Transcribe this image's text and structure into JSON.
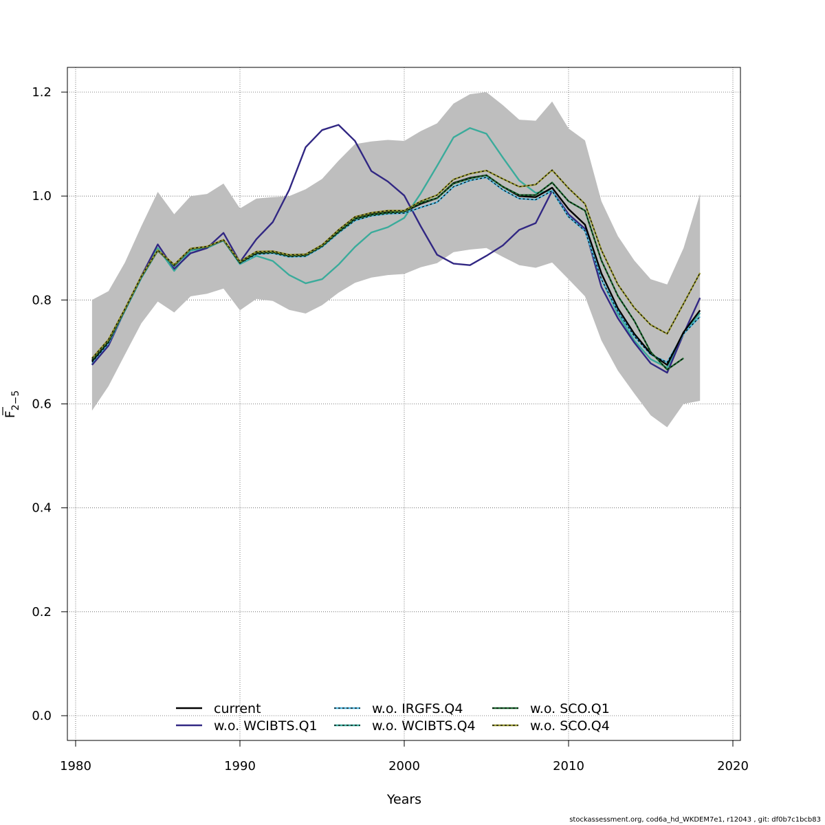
{
  "footer": "stockassessment.org, cod6a_hd_WKDEM7e1, r12043 , git: df0b7c1bcb83",
  "chart_data": {
    "type": "line",
    "xlabel": "Years",
    "ylabel_main": "F",
    "ylabel_sub": "2−5",
    "xlim": [
      1980,
      2020
    ],
    "ylim": [
      0.0,
      1.2
    ],
    "x_ticks": [
      1980,
      1990,
      2000,
      2010,
      2020
    ],
    "y_ticks": [
      "0.0",
      "0.2",
      "0.4",
      "0.6",
      "0.8",
      "1.0",
      "1.2"
    ],
    "grid": true,
    "legend_position": "bottom-center",
    "colors": {
      "band": "#bebebe",
      "current": "#000000",
      "w.o. WCIBTS.Q1": "#312783",
      "w.o. IRGFS.Q4": "#50b8e0",
      "w.o. WCIBTS.Q4": "#3aab9b",
      "w.o. SCO.Q1": "#1e6a32",
      "w.o. SCO.Q4": "#999933"
    },
    "confidence_band": {
      "x": [
        1981,
        1982,
        1983,
        1984,
        1985,
        1986,
        1987,
        1988,
        1989,
        1990,
        1991,
        1992,
        1993,
        1994,
        1995,
        1996,
        1997,
        1998,
        1999,
        2000,
        2001,
        2002,
        2003,
        2004,
        2005,
        2006,
        2007,
        2008,
        2009,
        2010,
        2011,
        2012,
        2013,
        2014,
        2015,
        2016,
        2017,
        2018
      ],
      "upper": [
        0.8,
        0.817,
        0.872,
        0.942,
        1.008,
        0.965,
        1.0,
        1.004,
        1.024,
        0.976,
        0.995,
        0.998,
        1.0,
        1.013,
        1.033,
        1.068,
        1.1,
        1.105,
        1.108,
        1.106,
        1.125,
        1.14,
        1.178,
        1.196,
        1.2,
        1.175,
        1.147,
        1.145,
        1.182,
        1.13,
        1.107,
        0.99,
        0.923,
        0.876,
        0.84,
        0.83,
        0.9,
        1.004
      ],
      "lower": [
        0.587,
        0.634,
        0.695,
        0.755,
        0.797,
        0.776,
        0.807,
        0.812,
        0.822,
        0.78,
        0.802,
        0.798,
        0.781,
        0.774,
        0.79,
        0.814,
        0.833,
        0.843,
        0.848,
        0.85,
        0.863,
        0.871,
        0.892,
        0.897,
        0.9,
        0.883,
        0.867,
        0.862,
        0.872,
        0.84,
        0.807,
        0.722,
        0.664,
        0.62,
        0.578,
        0.555,
        0.6,
        0.606
      ]
    },
    "series": [
      {
        "name": "w.o. WCIBTS.Q4",
        "dash": "",
        "x": [
          1981,
          1982,
          1983,
          1984,
          1985,
          1986,
          1987,
          1988,
          1989,
          1990,
          1991,
          1992,
          1993,
          1994,
          1995,
          1996,
          1997,
          1998,
          1999,
          2000,
          2001,
          2002,
          2003,
          2004,
          2005,
          2006,
          2007,
          2008,
          2009,
          2010,
          2011,
          2012,
          2013,
          2014,
          2015,
          2016,
          2017,
          2018
        ],
        "values": [
          0.676,
          0.717,
          0.78,
          0.845,
          0.9,
          0.856,
          0.895,
          0.9,
          0.915,
          0.869,
          0.885,
          0.875,
          0.848,
          0.832,
          0.84,
          0.868,
          0.902,
          0.93,
          0.94,
          0.958,
          1.005,
          1.058,
          1.113,
          1.131,
          1.12,
          1.074,
          1.03,
          1.006,
          1.01,
          0.96,
          0.935,
          0.84,
          0.773,
          0.722,
          0.686,
          0.67,
          0.735,
          0.775
        ]
      },
      {
        "name": "w.o. WCIBTS.Q1",
        "dash": "",
        "x": [
          1981,
          1982,
          1983,
          1984,
          1985,
          1986,
          1987,
          1988,
          1989,
          1990,
          1991,
          1992,
          1993,
          1994,
          1995,
          1996,
          1997,
          1998,
          1999,
          2000,
          2001,
          2002,
          2003,
          2004,
          2005,
          2006,
          2007,
          2008,
          2009,
          2010,
          2011,
          2012,
          2013,
          2014,
          2015,
          2016,
          2017,
          2018
        ],
        "values": [
          0.675,
          0.712,
          0.78,
          0.846,
          0.907,
          0.86,
          0.89,
          0.9,
          0.929,
          0.873,
          0.917,
          0.95,
          1.012,
          1.094,
          1.127,
          1.137,
          1.106,
          1.048,
          1.028,
          1.001,
          0.942,
          0.887,
          0.87,
          0.867,
          0.885,
          0.905,
          0.935,
          0.948,
          1.01,
          0.965,
          0.937,
          0.825,
          0.765,
          0.718,
          0.678,
          0.66,
          0.735,
          0.804
        ]
      },
      {
        "name": "w.o. IRGFS.Q4",
        "dash": "3 3",
        "x": [
          1981,
          1982,
          1983,
          1984,
          1985,
          1986,
          1987,
          1988,
          1989,
          1990,
          1991,
          1992,
          1993,
          1994,
          1995,
          1996,
          1997,
          1998,
          1999,
          2000,
          2001,
          2002,
          2003,
          2004,
          2005,
          2006,
          2007,
          2008,
          2009,
          2010,
          2011,
          2012,
          2013,
          2014,
          2015,
          2016,
          2017,
          2018
        ],
        "values": [
          0.68,
          0.717,
          0.779,
          0.842,
          0.895,
          0.865,
          0.897,
          0.902,
          0.914,
          0.87,
          0.888,
          0.89,
          0.883,
          0.884,
          0.902,
          0.929,
          0.953,
          0.962,
          0.966,
          0.967,
          0.978,
          0.988,
          1.018,
          1.03,
          1.036,
          1.012,
          0.995,
          0.993,
          1.01,
          0.96,
          0.933,
          0.84,
          0.778,
          0.73,
          0.695,
          0.68,
          0.735,
          0.768
        ]
      },
      {
        "name": "current",
        "dash": "",
        "x": [
          1981,
          1982,
          1983,
          1984,
          1985,
          1986,
          1987,
          1988,
          1989,
          1990,
          1991,
          1992,
          1993,
          1994,
          1995,
          1996,
          1997,
          1998,
          1999,
          2000,
          2001,
          2002,
          2003,
          2004,
          2005,
          2006,
          2007,
          2008,
          2009,
          2010,
          2011,
          2012,
          2013,
          2014,
          2015,
          2016,
          2017,
          2018
        ],
        "values": [
          0.682,
          0.72,
          0.781,
          0.845,
          0.895,
          0.866,
          0.898,
          0.902,
          0.915,
          0.872,
          0.89,
          0.892,
          0.885,
          0.886,
          0.904,
          0.932,
          0.957,
          0.965,
          0.969,
          0.97,
          0.985,
          0.996,
          1.025,
          1.035,
          1.04,
          1.018,
          1.0,
          0.998,
          1.016,
          0.975,
          0.945,
          0.851,
          0.784,
          0.735,
          0.697,
          0.675,
          0.738,
          0.78
        ]
      },
      {
        "name": "w.o. SCO.Q1",
        "dash": "3 3",
        "x": [
          1981,
          1982,
          1983,
          1984,
          1985,
          1986,
          1987,
          1988,
          1989,
          1990,
          1991,
          1992,
          1993,
          1994,
          1995,
          1996,
          1997,
          1998,
          1999,
          2000,
          2001,
          2002,
          2003,
          2004,
          2005,
          2006,
          2007,
          2008,
          2009,
          2010,
          2011,
          2012,
          2013,
          2014,
          2015,
          2016,
          2017
        ],
        "values": [
          0.685,
          0.721,
          0.781,
          0.844,
          0.895,
          0.866,
          0.898,
          0.902,
          0.915,
          0.871,
          0.891,
          0.892,
          0.885,
          0.886,
          0.904,
          0.931,
          0.956,
          0.964,
          0.968,
          0.97,
          0.987,
          0.996,
          1.024,
          1.034,
          1.04,
          1.018,
          1.002,
          1.002,
          1.026,
          0.99,
          0.972,
          0.876,
          0.808,
          0.76,
          0.7,
          0.666,
          0.688
        ]
      },
      {
        "name": "w.o. SCO.Q4",
        "dash": "3 3",
        "x": [
          1981,
          1982,
          1983,
          1984,
          1985,
          1986,
          1987,
          1988,
          1989,
          1990,
          1991,
          1992,
          1993,
          1994,
          1995,
          1996,
          1997,
          1998,
          1999,
          2000,
          2001,
          2002,
          2003,
          2004,
          2005,
          2006,
          2007,
          2008,
          2009,
          2010,
          2011,
          2012,
          2013,
          2014,
          2015,
          2016,
          2017,
          2018
        ],
        "values": [
          0.688,
          0.724,
          0.783,
          0.846,
          0.896,
          0.868,
          0.899,
          0.903,
          0.916,
          0.874,
          0.893,
          0.894,
          0.887,
          0.888,
          0.906,
          0.935,
          0.96,
          0.968,
          0.972,
          0.972,
          0.99,
          1.002,
          1.032,
          1.043,
          1.049,
          1.033,
          1.018,
          1.022,
          1.05,
          1.015,
          0.985,
          0.896,
          0.83,
          0.785,
          0.752,
          0.735,
          0.793,
          0.852
        ]
      }
    ],
    "legend": [
      {
        "label": "current",
        "color": "#000000",
        "dot": false
      },
      {
        "label": "w.o. WCIBTS.Q1",
        "color": "#312783",
        "dot": false
      },
      {
        "label": "w.o. IRGFS.Q4",
        "color": "#50b8e0",
        "dot": true
      },
      {
        "label": "w.o. WCIBTS.Q4",
        "color": "#3aab9b",
        "dot": true
      },
      {
        "label": "w.o. SCO.Q1",
        "color": "#1e6a32",
        "dot": true
      },
      {
        "label": "w.o. SCO.Q4",
        "color": "#999933",
        "dot": true
      }
    ]
  }
}
